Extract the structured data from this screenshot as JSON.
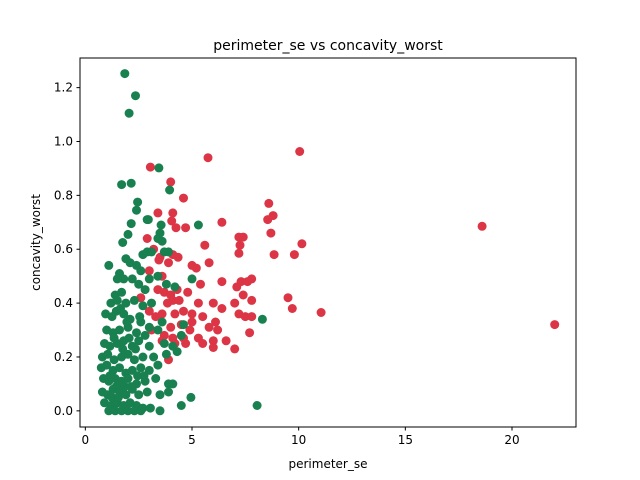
{
  "chart_data": {
    "type": "scatter",
    "title": "perimeter_se vs concavity_worst",
    "xlabel": "perimeter_se",
    "ylabel": "concavity_worst",
    "xlim": [
      -0.25,
      23.0
    ],
    "ylim": [
      -0.06,
      1.31
    ],
    "xticks": [
      0,
      5,
      10,
      15,
      20
    ],
    "yticks": [
      0.0,
      0.2,
      0.4,
      0.6,
      0.8,
      1.0,
      1.2
    ],
    "xtick_labels": [
      "0",
      "5",
      "10",
      "15",
      "20"
    ],
    "ytick_labels": [
      "0.0",
      "0.2",
      "0.4",
      "0.6",
      "0.8",
      "1.0",
      "1.2"
    ],
    "grid": false,
    "series": [
      {
        "color": "#dc3545",
        "points": [
          [
            3.05,
            0.905
          ],
          [
            5.75,
            0.94
          ],
          [
            10.05,
            0.963
          ],
          [
            4.0,
            0.85
          ],
          [
            4.6,
            0.79
          ],
          [
            3.4,
            0.735
          ],
          [
            4.1,
            0.735
          ],
          [
            4.05,
            0.705
          ],
          [
            4.25,
            0.68
          ],
          [
            4.7,
            0.68
          ],
          [
            6.4,
            0.7
          ],
          [
            8.6,
            0.77
          ],
          [
            8.55,
            0.71
          ],
          [
            8.8,
            0.725
          ],
          [
            8.7,
            0.66
          ],
          [
            7.2,
            0.645
          ],
          [
            7.4,
            0.645
          ],
          [
            7.25,
            0.615
          ],
          [
            10.15,
            0.62
          ],
          [
            9.8,
            0.58
          ],
          [
            8.85,
            0.58
          ],
          [
            7.2,
            0.585
          ],
          [
            5.6,
            0.615
          ],
          [
            18.6,
            0.685
          ],
          [
            3.2,
            0.6
          ],
          [
            3.5,
            0.57
          ],
          [
            4.1,
            0.58
          ],
          [
            3.9,
            0.55
          ],
          [
            4.35,
            0.57
          ],
          [
            3.0,
            0.52
          ],
          [
            3.6,
            0.5
          ],
          [
            5.0,
            0.54
          ],
          [
            5.2,
            0.53
          ],
          [
            5.8,
            0.55
          ],
          [
            6.4,
            0.48
          ],
          [
            7.3,
            0.48
          ],
          [
            7.6,
            0.48
          ],
          [
            7.8,
            0.49
          ],
          [
            7.1,
            0.46
          ],
          [
            5.4,
            0.47
          ],
          [
            4.3,
            0.45
          ],
          [
            4.8,
            0.44
          ],
          [
            3.4,
            0.45
          ],
          [
            3.7,
            0.44
          ],
          [
            4.0,
            0.43
          ],
          [
            3.85,
            0.4
          ],
          [
            4.1,
            0.41
          ],
          [
            4.4,
            0.41
          ],
          [
            5.3,
            0.4
          ],
          [
            6.0,
            0.4
          ],
          [
            6.4,
            0.38
          ],
          [
            7.0,
            0.4
          ],
          [
            7.4,
            0.43
          ],
          [
            7.8,
            0.41
          ],
          [
            9.5,
            0.42
          ],
          [
            9.7,
            0.38
          ],
          [
            11.05,
            0.365
          ],
          [
            3.0,
            0.37
          ],
          [
            3.3,
            0.35
          ],
          [
            3.6,
            0.36
          ],
          [
            4.2,
            0.36
          ],
          [
            4.6,
            0.37
          ],
          [
            5.0,
            0.36
          ],
          [
            5.5,
            0.35
          ],
          [
            6.1,
            0.33
          ],
          [
            7.2,
            0.36
          ],
          [
            7.5,
            0.35
          ],
          [
            7.8,
            0.35
          ],
          [
            4.0,
            0.31
          ],
          [
            4.5,
            0.32
          ],
          [
            5.0,
            0.33
          ],
          [
            5.8,
            0.31
          ],
          [
            6.2,
            0.3
          ],
          [
            7.7,
            0.29
          ],
          [
            3.7,
            0.28
          ],
          [
            4.1,
            0.27
          ],
          [
            4.6,
            0.27
          ],
          [
            5.3,
            0.27
          ],
          [
            6.0,
            0.26
          ],
          [
            5.5,
            0.25
          ],
          [
            4.7,
            0.25
          ],
          [
            4.2,
            0.25
          ],
          [
            3.6,
            0.26
          ],
          [
            6.6,
            0.26
          ],
          [
            7.0,
            0.23
          ],
          [
            6.0,
            0.235
          ],
          [
            3.9,
            0.19
          ],
          [
            3.1,
            0.3
          ],
          [
            2.6,
            0.42
          ],
          [
            2.9,
            0.64
          ],
          [
            3.45,
            0.56
          ],
          [
            22.0,
            0.32
          ],
          [
            4.9,
            0.3
          ]
        ]
      },
      {
        "color": "#198050",
        "points": [
          [
            1.85,
            1.252
          ],
          [
            2.35,
            1.17
          ],
          [
            2.05,
            1.105
          ],
          [
            3.45,
            0.902
          ],
          [
            1.7,
            0.84
          ],
          [
            2.15,
            0.845
          ],
          [
            3.95,
            0.82
          ],
          [
            2.45,
            0.775
          ],
          [
            2.4,
            0.745
          ],
          [
            2.9,
            0.71
          ],
          [
            2.95,
            0.71
          ],
          [
            3.55,
            0.69
          ],
          [
            3.5,
            0.66
          ],
          [
            3.4,
            0.64
          ],
          [
            5.3,
            0.69
          ],
          [
            2.15,
            0.695
          ],
          [
            2.0,
            0.655
          ],
          [
            1.75,
            0.625
          ],
          [
            3.6,
            0.63
          ],
          [
            1.9,
            0.565
          ],
          [
            2.1,
            0.55
          ],
          [
            2.4,
            0.54
          ],
          [
            2.6,
            0.52
          ],
          [
            2.9,
            0.59
          ],
          [
            3.1,
            0.59
          ],
          [
            3.7,
            0.59
          ],
          [
            3.9,
            0.59
          ],
          [
            2.7,
            0.58
          ],
          [
            1.1,
            0.54
          ],
          [
            1.5,
            0.49
          ],
          [
            1.6,
            0.51
          ],
          [
            1.8,
            0.49
          ],
          [
            2.2,
            0.49
          ],
          [
            3.0,
            0.49
          ],
          [
            3.4,
            0.5
          ],
          [
            5.0,
            0.49
          ],
          [
            2.5,
            0.47
          ],
          [
            2.8,
            0.45
          ],
          [
            3.8,
            0.47
          ],
          [
            4.2,
            0.46
          ],
          [
            1.4,
            0.43
          ],
          [
            1.7,
            0.44
          ],
          [
            1.2,
            0.4
          ],
          [
            1.5,
            0.41
          ],
          [
            1.9,
            0.4
          ],
          [
            2.3,
            0.41
          ],
          [
            2.7,
            0.39
          ],
          [
            3.1,
            0.4
          ],
          [
            0.95,
            0.36
          ],
          [
            1.25,
            0.35
          ],
          [
            1.45,
            0.37
          ],
          [
            1.8,
            0.36
          ],
          [
            2.1,
            0.34
          ],
          [
            2.6,
            0.33
          ],
          [
            3.0,
            0.31
          ],
          [
            3.6,
            0.33
          ],
          [
            4.6,
            0.32
          ],
          [
            8.3,
            0.34
          ],
          [
            1.0,
            0.3
          ],
          [
            1.3,
            0.29
          ],
          [
            1.6,
            0.3
          ],
          [
            2.0,
            0.31
          ],
          [
            2.4,
            0.29
          ],
          [
            2.8,
            0.28
          ],
          [
            3.4,
            0.3
          ],
          [
            4.5,
            0.28
          ],
          [
            0.9,
            0.25
          ],
          [
            1.15,
            0.24
          ],
          [
            1.5,
            0.25
          ],
          [
            1.8,
            0.26
          ],
          [
            2.2,
            0.24
          ],
          [
            2.5,
            0.26
          ],
          [
            3.0,
            0.24
          ],
          [
            3.7,
            0.25
          ],
          [
            4.1,
            0.24
          ],
          [
            4.3,
            0.22
          ],
          [
            0.8,
            0.2
          ],
          [
            1.05,
            0.21
          ],
          [
            1.35,
            0.19
          ],
          [
            1.7,
            0.2
          ],
          [
            2.0,
            0.21
          ],
          [
            2.3,
            0.19
          ],
          [
            2.7,
            0.2
          ],
          [
            3.2,
            0.2
          ],
          [
            3.8,
            0.21
          ],
          [
            0.75,
            0.16
          ],
          [
            1.0,
            0.17
          ],
          [
            1.3,
            0.15
          ],
          [
            1.6,
            0.16
          ],
          [
            1.9,
            0.14
          ],
          [
            2.2,
            0.15
          ],
          [
            2.6,
            0.16
          ],
          [
            3.0,
            0.15
          ],
          [
            3.4,
            0.17
          ],
          [
            0.85,
            0.12
          ],
          [
            1.1,
            0.11
          ],
          [
            1.4,
            0.12
          ],
          [
            1.7,
            0.11
          ],
          [
            2.0,
            0.12
          ],
          [
            2.4,
            0.1
          ],
          [
            2.8,
            0.11
          ],
          [
            3.3,
            0.12
          ],
          [
            3.9,
            0.1
          ],
          [
            4.1,
            0.1
          ],
          [
            0.8,
            0.07
          ],
          [
            1.05,
            0.06
          ],
          [
            1.3,
            0.08
          ],
          [
            1.6,
            0.07
          ],
          [
            1.9,
            0.06
          ],
          [
            2.2,
            0.08
          ],
          [
            2.5,
            0.06
          ],
          [
            2.9,
            0.07
          ],
          [
            3.5,
            0.06
          ],
          [
            3.9,
            0.07
          ],
          [
            0.9,
            0.03
          ],
          [
            1.2,
            0.02
          ],
          [
            1.5,
            0.03
          ],
          [
            1.8,
            0.02
          ],
          [
            2.1,
            0.03
          ],
          [
            2.4,
            0.02
          ],
          [
            2.7,
            0.01
          ],
          [
            3.05,
            0.01
          ],
          [
            3.5,
            0.0
          ],
          [
            4.5,
            0.02
          ],
          [
            4.95,
            0.05
          ],
          [
            1.1,
            0.0
          ],
          [
            1.4,
            0.0
          ],
          [
            1.7,
            0.0
          ],
          [
            2.0,
            0.0
          ],
          [
            2.3,
            0.0
          ],
          [
            2.6,
            0.0
          ],
          [
            8.05,
            0.02
          ],
          [
            1.25,
            0.05
          ],
          [
            1.55,
            0.05
          ],
          [
            1.85,
            0.09
          ],
          [
            2.15,
            0.09
          ],
          [
            2.45,
            0.13
          ],
          [
            2.75,
            0.13
          ],
          [
            1.15,
            0.13
          ],
          [
            1.45,
            0.09
          ],
          [
            1.75,
            0.23
          ],
          [
            2.05,
            0.27
          ],
          [
            2.35,
            0.23
          ],
          [
            1.95,
            0.33
          ],
          [
            1.65,
            0.38
          ],
          [
            2.55,
            0.35
          ],
          [
            1.35,
            0.27
          ]
        ]
      }
    ]
  }
}
